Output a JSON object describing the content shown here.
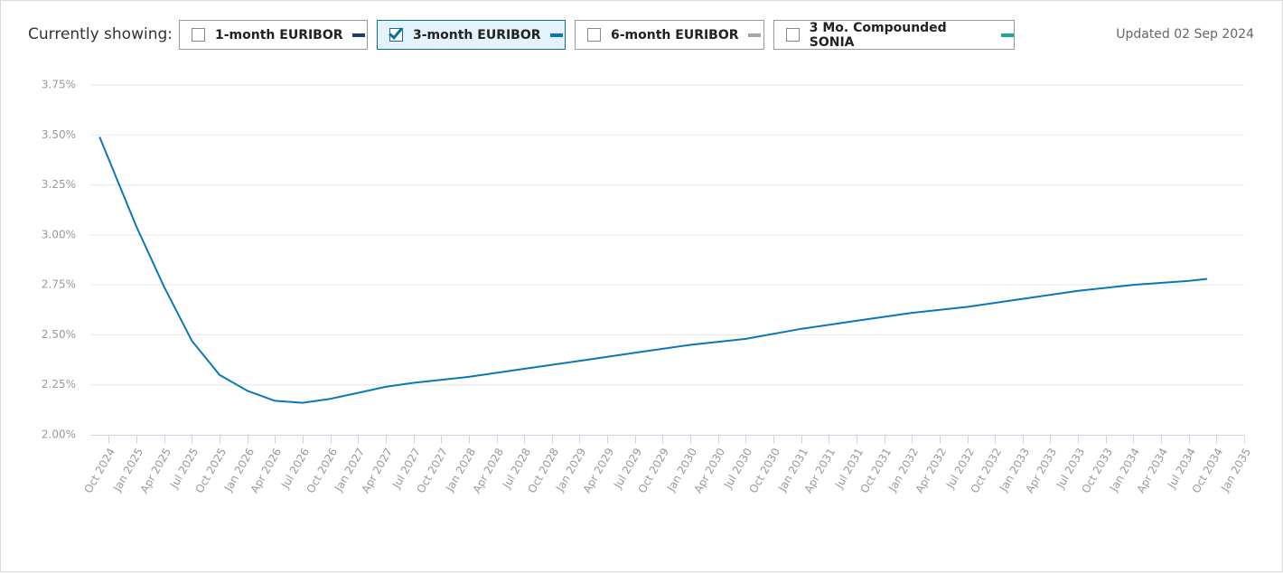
{
  "header": {
    "label": "Currently showing:",
    "updated": "Updated 02 Sep 2024"
  },
  "chart_data": {
    "type": "line",
    "series": [
      {
        "name": "1-month EURIBOR",
        "color": "#1f3a6e",
        "selected": false
      },
      {
        "name": "3-month EURIBOR",
        "color": "#0b77b8",
        "selected": true,
        "values": [
          3.49,
          3.04,
          2.74,
          2.47,
          2.3,
          2.22,
          2.17,
          2.16,
          2.18,
          2.21,
          2.24,
          2.26,
          2.29,
          2.33,
          2.37,
          2.41,
          2.45,
          2.48,
          2.53,
          2.57,
          2.61,
          2.64,
          2.68,
          2.72,
          2.75,
          2.77,
          2.78
        ]
      },
      {
        "name": "6-month EURIBOR",
        "color": "#a3a5ad",
        "selected": false
      },
      {
        "name": "3 Mo. Compounded SONIA",
        "color": "#1aa99a",
        "selected": false
      }
    ],
    "x": [
      "Sep 2024",
      "Jan 2025",
      "Apr 2025",
      "Jul 2025",
      "Oct 2025",
      "Jan 2026",
      "Apr 2026",
      "Jul 2026",
      "Oct 2026",
      "Jan 2027",
      "Apr 2027",
      "Jul 2027",
      "Jan 2028",
      "Jul 2028",
      "Jan 2029",
      "Jul 2029",
      "Jan 2030",
      "Jul 2030",
      "Jan 2031",
      "Jul 2031",
      "Jan 2032",
      "Jul 2032",
      "Jan 2033",
      "Jul 2033",
      "Jan 2034",
      "Jul 2034",
      "Sep 2034"
    ],
    "xlim": [
      "Aug 2024",
      "Jan 2035"
    ],
    "xticks": [
      "Oct 2024",
      "Jan 2025",
      "Apr 2025",
      "Jul 2025",
      "Oct 2025",
      "Jan 2026",
      "Apr 2026",
      "Jul 2026",
      "Oct 2026",
      "Jan 2027",
      "Apr 2027",
      "Jul 2027",
      "Oct 2027",
      "Jan 2028",
      "Apr 2028",
      "Jul 2028",
      "Oct 2028",
      "Jan 2029",
      "Apr 2029",
      "Jul 2029",
      "Oct 2029",
      "Jan 2030",
      "Apr 2030",
      "Jul 2030",
      "Oct 2030",
      "Jan 2031",
      "Apr 2031",
      "Jul 2031",
      "Oct 2031",
      "Jan 2032",
      "Apr 2032",
      "Jul 2032",
      "Oct 2032",
      "Jan 2033",
      "Apr 2033",
      "Jul 2033",
      "Oct 2033",
      "Jan 2034",
      "Apr 2034",
      "Jul 2034",
      "Oct 2034",
      "Jan 2035"
    ],
    "ylim": [
      2.0,
      3.75
    ],
    "yticks": [
      {
        "value": 2.0,
        "label": "2.00%"
      },
      {
        "value": 2.25,
        "label": "2.25%"
      },
      {
        "value": 2.5,
        "label": "2.50%"
      },
      {
        "value": 2.75,
        "label": "2.75%"
      },
      {
        "value": 3.0,
        "label": "3.00%"
      },
      {
        "value": 3.25,
        "label": "3.25%"
      },
      {
        "value": 3.5,
        "label": "3.50%"
      },
      {
        "value": 3.75,
        "label": "3.75%"
      }
    ],
    "grid": true
  }
}
